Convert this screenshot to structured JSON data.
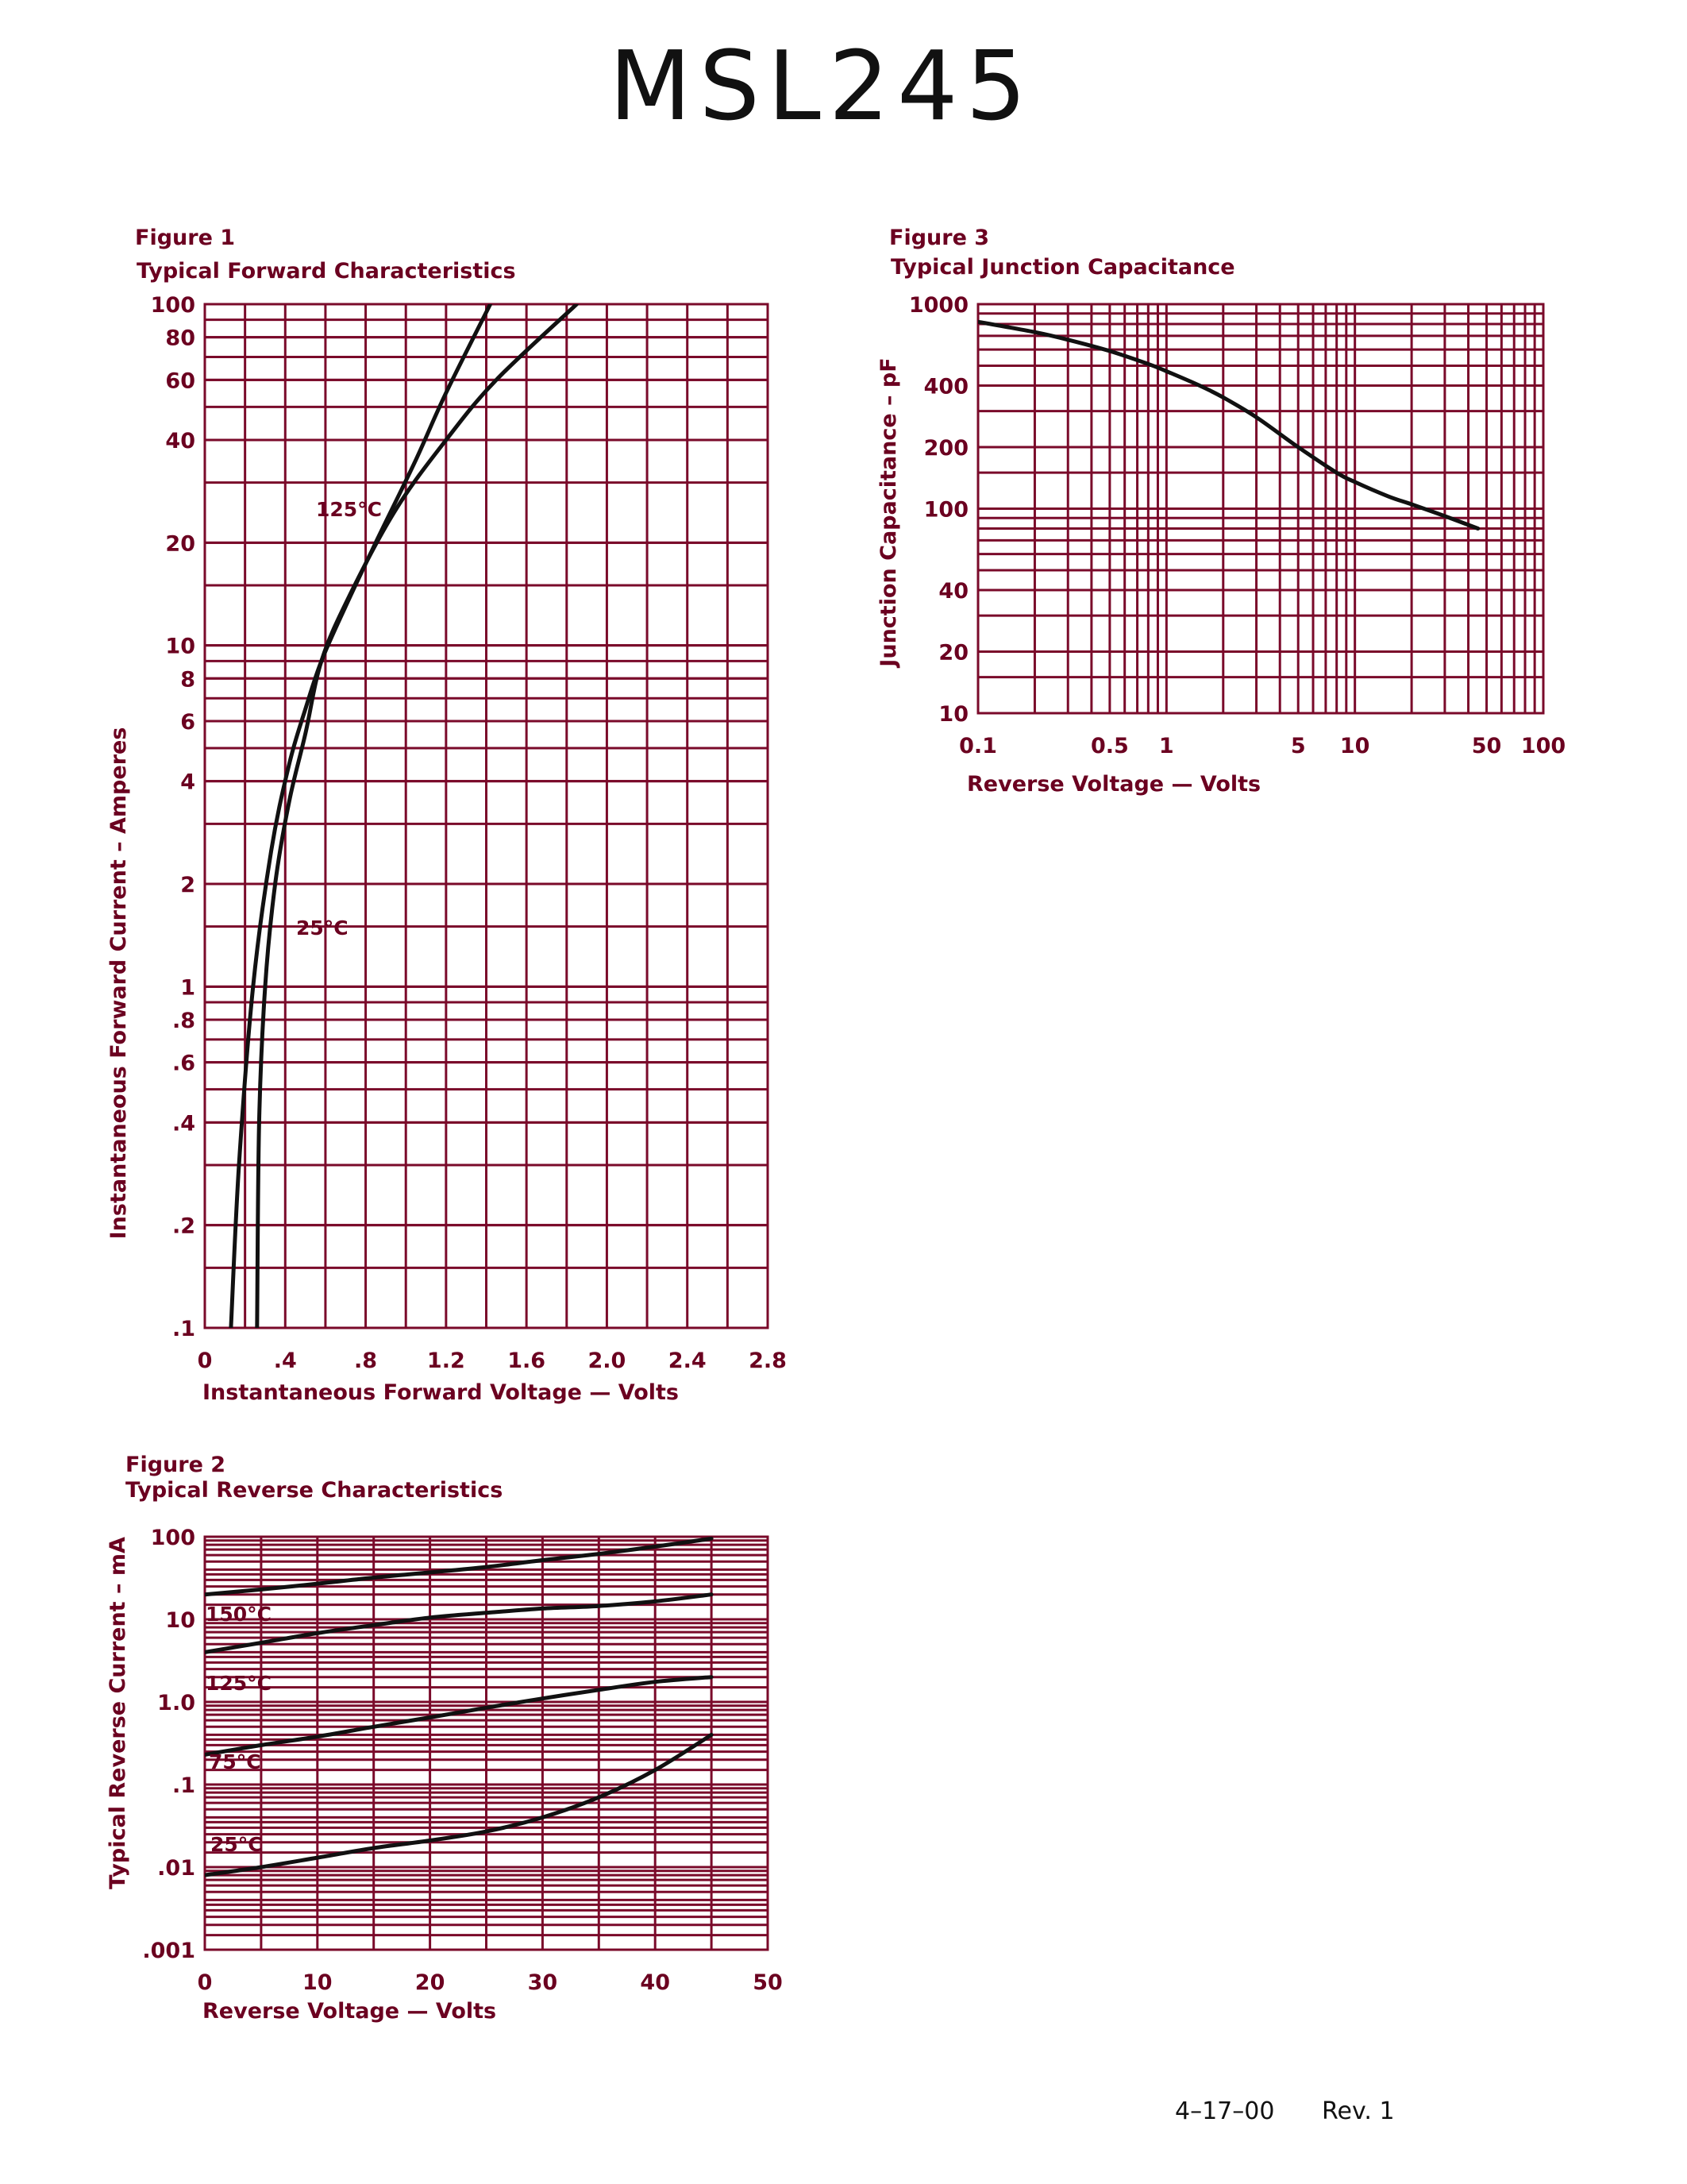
{
  "page": {
    "title": "MSL245",
    "footer_date": "4–17–00",
    "footer_rev": "Rev. 1"
  },
  "chart_data": [
    {
      "type": "line",
      "figure": "Figure 1",
      "title": "Typical Forward Characteristics",
      "xlabel": "Instantaneous Forward Voltage — Volts",
      "ylabel": "Instantaneous Forward Current – Amperes",
      "xlim": [
        0,
        2.8
      ],
      "ylim": [
        0.1,
        100
      ],
      "yscale": "log",
      "x_ticks": [
        0,
        0.4,
        0.8,
        1.2,
        1.6,
        2.0,
        2.4,
        2.8
      ],
      "x_tick_labels": [
        "0",
        ".4",
        ".8",
        "1.2",
        "1.6",
        "2.0",
        "2.4",
        "2.8"
      ],
      "y_ticks": [
        0.1,
        0.2,
        0.4,
        0.6,
        0.8,
        1,
        2,
        4,
        6,
        8,
        10,
        20,
        40,
        60,
        80,
        100
      ],
      "y_tick_labels": [
        ".1",
        ".2",
        ".4",
        ".6",
        ".8",
        "1",
        "2",
        "4",
        "6",
        "8",
        "10",
        "20",
        "40",
        "60",
        "80",
        "100"
      ],
      "series": [
        {
          "name": "125°C",
          "x": [
            0.13,
            0.17,
            0.24,
            0.33,
            0.42,
            0.5,
            0.58,
            0.7,
            0.85,
            1.05,
            1.2,
            1.42
          ],
          "y": [
            0.1,
            0.3,
            1,
            2.5,
            4.5,
            6.5,
            9,
            13,
            20,
            35,
            55,
            100
          ]
        },
        {
          "name": "25°C",
          "x": [
            0.26,
            0.27,
            0.3,
            0.35,
            0.42,
            0.5,
            0.58,
            0.72,
            0.95,
            1.2,
            1.45,
            1.85
          ],
          "y": [
            0.1,
            0.4,
            1,
            2,
            3.5,
            5.5,
            9,
            14,
            25,
            40,
            60,
            100
          ]
        }
      ],
      "annotations": [
        {
          "text": "125°C",
          "series": "125°C"
        },
        {
          "text": "25°C",
          "series": "25°C"
        }
      ]
    },
    {
      "type": "line",
      "figure": "Figure 2",
      "title": "Typical Reverse Characteristics",
      "xlabel": "Reverse Voltage — Volts",
      "ylabel": "Typical Reverse Current – mA",
      "xlim": [
        0,
        50
      ],
      "ylim": [
        0.001,
        100
      ],
      "yscale": "log",
      "x_ticks": [
        0,
        10,
        20,
        30,
        40,
        50
      ],
      "x_tick_labels": [
        "0",
        "10",
        "20",
        "30",
        "40",
        "50"
      ],
      "y_ticks": [
        0.001,
        0.01,
        0.1,
        1,
        10,
        100
      ],
      "y_tick_labels": [
        ".001",
        ".01",
        ".1",
        "1.0",
        "10",
        "100"
      ],
      "series": [
        {
          "name": "150°C",
          "x": [
            0,
            5,
            10,
            15,
            20,
            25,
            30,
            35,
            40,
            45
          ],
          "y": [
            20,
            23,
            27,
            32,
            37,
            43,
            52,
            62,
            76,
            95
          ]
        },
        {
          "name": "125°C",
          "x": [
            0,
            5,
            10,
            15,
            20,
            25,
            30,
            35,
            40,
            45
          ],
          "y": [
            4,
            5.2,
            6.8,
            8.5,
            10.5,
            12,
            13.5,
            14.5,
            16.5,
            20
          ]
        },
        {
          "name": "75°C",
          "x": [
            0,
            5,
            10,
            15,
            20,
            25,
            30,
            35,
            40,
            45
          ],
          "y": [
            0.23,
            0.3,
            0.38,
            0.5,
            0.65,
            0.85,
            1.1,
            1.4,
            1.75,
            2.0
          ]
        },
        {
          "name": "25°C",
          "x": [
            0,
            5,
            10,
            15,
            20,
            25,
            30,
            35,
            40,
            45
          ],
          "y": [
            0.008,
            0.01,
            0.013,
            0.017,
            0.021,
            0.027,
            0.04,
            0.07,
            0.15,
            0.4
          ]
        }
      ],
      "annotations": [
        {
          "text": "150°C",
          "series": "150°C"
        },
        {
          "text": "125°C",
          "series": "125°C"
        },
        {
          "text": "75°C",
          "series": "75°C"
        },
        {
          "text": "25°C",
          "series": "25°C"
        }
      ]
    },
    {
      "type": "line",
      "figure": "Figure 3",
      "title": "Typical Junction Capacitance",
      "xlabel": "Reverse Voltage — Volts",
      "ylabel": "Junction Capacitance – pF",
      "xlim": [
        0.1,
        100
      ],
      "ylim": [
        10,
        1000
      ],
      "xscale": "log",
      "yscale": "log",
      "x_ticks": [
        0.1,
        0.5,
        1,
        5,
        10,
        50,
        100
      ],
      "x_tick_labels": [
        "0.1",
        "0.5",
        "1",
        "5",
        "10",
        "50",
        "100"
      ],
      "y_ticks": [
        10,
        20,
        40,
        100,
        200,
        400,
        1000
      ],
      "y_tick_labels": [
        "10",
        "20",
        "40",
        "100",
        "200",
        "400",
        "1000"
      ],
      "series": [
        {
          "name": "Capacitance",
          "x": [
            0.1,
            0.2,
            0.3,
            0.5,
            0.8,
            1,
            1.5,
            2,
            3,
            5,
            8,
            10,
            15,
            20,
            30,
            45
          ],
          "y": [
            820,
            730,
            670,
            590,
            510,
            470,
            400,
            350,
            280,
            200,
            150,
            135,
            115,
            105,
            92,
            80
          ]
        }
      ]
    }
  ]
}
